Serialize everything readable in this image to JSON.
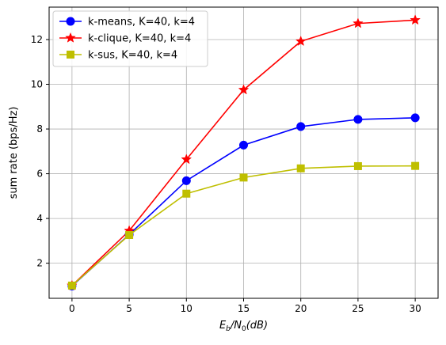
{
  "chart_data": {
    "type": "line",
    "xlabel_html": [
      "E",
      "b",
      "/N",
      "0",
      "(dB)"
    ],
    "ylabel": "sum rate (bps/Hz)",
    "xlim": [
      -2,
      32
    ],
    "ylim": [
      0.43,
      13.45
    ],
    "xticks": [
      0,
      5,
      10,
      15,
      20,
      25,
      30
    ],
    "yticks": [
      2,
      4,
      6,
      8,
      10,
      12
    ],
    "grid": true,
    "legend_position": "top-left",
    "x": [
      0,
      5,
      10,
      15,
      20,
      25,
      30
    ],
    "series": [
      {
        "name": "k-means, K=40, k=4",
        "color": "#0000ff",
        "marker": "circle",
        "values": [
          0.98,
          3.28,
          5.69,
          7.28,
          8.11,
          8.43,
          8.5
        ]
      },
      {
        "name": "k-clique, K=40, k=4",
        "color": "#ff0000",
        "marker": "star",
        "values": [
          1.0,
          3.45,
          6.64,
          9.75,
          11.92,
          12.72,
          12.87
        ]
      },
      {
        "name": "k-sus, K=40, k=4",
        "color": "#bfbf00",
        "marker": "square",
        "values": [
          1.0,
          3.26,
          5.11,
          5.83,
          6.24,
          6.34,
          6.35
        ]
      }
    ]
  }
}
